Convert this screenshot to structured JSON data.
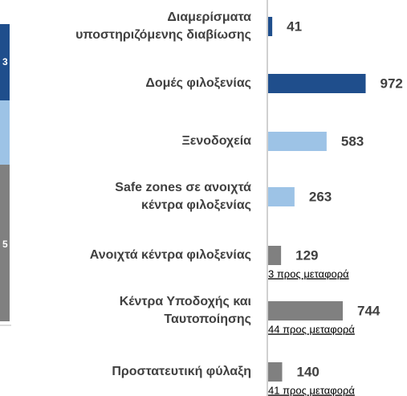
{
  "chart_data": {
    "type": "bar",
    "orientation": "horizontal",
    "categories": [
      [
        "Διαμερίσματα",
        "υποστηριζόμενης διαβίωσης"
      ],
      [
        "Δομές φιλοξενίας"
      ],
      [
        "Ξενοδοχεία"
      ],
      [
        "Safe zones σε ανοιχτά",
        "κέντρα φιλοξενίας"
      ],
      [
        "Ανοιχτά κέντρα φιλοξενίας"
      ],
      [
        "Κέντρα Υποδοχής και",
        "Ταυτοποίησης"
      ],
      [
        "Προστατευτική φύλαξη"
      ]
    ],
    "values": [
      41,
      972,
      583,
      263,
      129,
      744,
      140
    ],
    "colors": [
      "#1f4e8c",
      "#1f4e8c",
      "#9dc3e6",
      "#9dc3e6",
      "#808080",
      "#808080",
      "#808080"
    ],
    "xlim": [
      0,
      1400
    ],
    "annotations": [
      {
        "index": 4,
        "text": "3 προς μεταφορά"
      },
      {
        "index": 5,
        "text": "44 προς μεταφορά"
      },
      {
        "index": 6,
        "text": "41 προς μεταφορά"
      }
    ],
    "left_fragment_labels": [
      "3",
      "5"
    ]
  }
}
